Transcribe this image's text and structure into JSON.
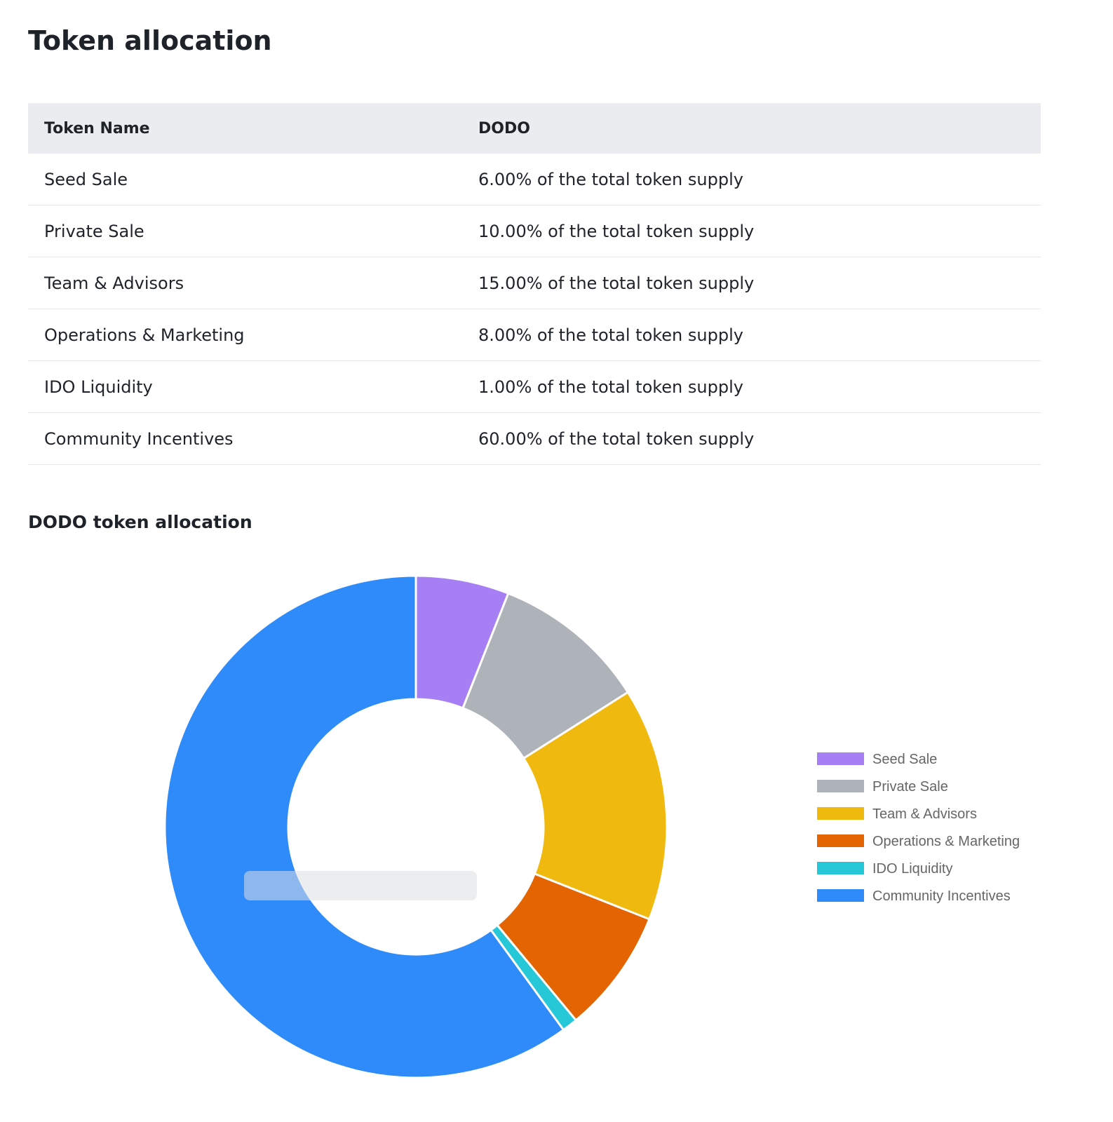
{
  "page": {
    "title": "Token allocation"
  },
  "table": {
    "headers": [
      "Token Name",
      "DODO"
    ],
    "rows": [
      [
        "Seed Sale",
        "6.00% of the total token supply"
      ],
      [
        "Private Sale",
        "10.00% of the total token supply"
      ],
      [
        "Team & Advisors",
        "15.00% of the total token supply"
      ],
      [
        "Operations & Marketing",
        "8.00% of the total token supply"
      ],
      [
        "IDO Liquidity",
        "1.00% of the total token supply"
      ],
      [
        "Community Incentives",
        "60.00% of the total token supply"
      ]
    ]
  },
  "chart_data": {
    "type": "pie",
    "title": "DODO token allocation",
    "donut": true,
    "legend_position": "right",
    "categories": [
      "Seed Sale",
      "Private Sale",
      "Team & Advisors",
      "Operations & Marketing",
      "IDO Liquidity",
      "Community Incentives"
    ],
    "values": [
      6,
      10,
      15,
      8,
      1,
      60
    ],
    "unit": "%",
    "colors": [
      "#a77ff5",
      "#aeb3ba",
      "#efb90f",
      "#e46402",
      "#26c7d6",
      "#2f8bfa"
    ]
  }
}
